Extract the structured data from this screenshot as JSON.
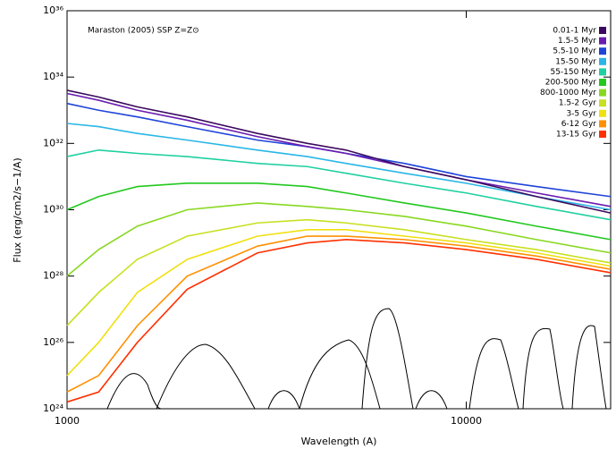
{
  "chart_data": {
    "type": "line",
    "title": "Maraston (2005) SSP Z=Z⊙",
    "x_label": "Wavelength (A)",
    "y_label": "Flux (erg/cm2/s−1/A)",
    "xlog": true,
    "ylog": true,
    "xlim": [
      1000,
      23000
    ],
    "ylim": [
      1e+24,
      1e+36
    ],
    "xticks": [
      1000,
      10000
    ],
    "yticks": [
      {
        "value": 1e+24,
        "label": "10²⁴"
      },
      {
        "value": 1e+26,
        "label": "10²⁶"
      },
      {
        "value": 1e+28,
        "label": "10²⁸"
      },
      {
        "value": 1e+30,
        "label": "10³⁰"
      },
      {
        "value": 1e+32,
        "label": "10³²"
      },
      {
        "value": 1e+34,
        "label": "10³⁴"
      },
      {
        "value": 1e+36,
        "label": "10³⁶"
      }
    ],
    "legend": "upper-right",
    "x": [
      1000,
      1200,
      1500,
      2000,
      3000,
      4000,
      5000,
      7000,
      10000,
      15000,
      23000
    ],
    "series": [
      {
        "name": "0.01-1 Myr",
        "color": "#3b0a5e",
        "values": [
          4e+33,
          2.5e+33,
          1.26e+33,
          6.3e+32,
          2e+32,
          1e+32,
          6.3e+31,
          2e+31,
          8e+30,
          2.5e+30,
          8e+29
        ]
      },
      {
        "name": "1.5-5 Myr",
        "color": "#6a1bb0",
        "values": [
          3.2e+33,
          2e+33,
          1e+33,
          5e+32,
          1.6e+32,
          8e+31,
          5e+31,
          2e+31,
          8e+30,
          3.2e+30,
          1.26e+30
        ]
      },
      {
        "name": "5.5-10 Myr",
        "color": "#1e44d8",
        "values": [
          1.6e+33,
          1e+33,
          6.3e+32,
          3.2e+32,
          1.26e+32,
          8e+31,
          5e+31,
          2.5e+31,
          1e+31,
          5e+30,
          2.5e+30
        ]
      },
      {
        "name": "15-50 Myr",
        "color": "#29b6e6",
        "values": [
          4e+32,
          3.2e+32,
          2e+32,
          1.26e+32,
          6.3e+31,
          4e+31,
          2.5e+31,
          1.26e+31,
          6.3e+30,
          2.5e+30,
          1e+30
        ]
      },
      {
        "name": "55-150 Myr",
        "color": "#1fd0a0",
        "values": [
          4e+31,
          6.3e+31,
          5e+31,
          4e+31,
          2.5e+31,
          2e+31,
          1.26e+31,
          6.3e+30,
          3.2e+30,
          1.26e+30,
          5e+29
        ]
      },
      {
        "name": "200-500 Myr",
        "color": "#22c81e",
        "values": [
          1e+30,
          2.5e+30,
          5e+30,
          6.3e+30,
          6.3e+30,
          5e+30,
          3.2e+30,
          1.6e+30,
          8e+29,
          3.2e+29,
          1.26e+29
        ]
      },
      {
        "name": "800-1000 Myr",
        "color": "#88d820",
        "values": [
          1e+28,
          6.3e+28,
          3.2e+29,
          1e+30,
          1.6e+30,
          1.26e+30,
          1e+30,
          6.3e+29,
          3.2e+29,
          1.26e+29,
          5e+28
        ]
      },
      {
        "name": "1.5-2 Gyr",
        "color": "#c8e020",
        "values": [
          3.2e+26,
          3.2e+27,
          3.2e+28,
          1.6e+29,
          4e+29,
          5e+29,
          4e+29,
          2.5e+29,
          1.26e+29,
          6.3e+28,
          2.5e+28
        ]
      },
      {
        "name": "3-5 Gyr",
        "color": "#f0e010",
        "values": [
          1e+25,
          1e+26,
          3.2e+27,
          3.2e+28,
          1.6e+29,
          2.5e+29,
          2.5e+29,
          1.6e+29,
          1e+29,
          5e+28,
          2e+28
        ]
      },
      {
        "name": "6-12 Gyr",
        "color": "#ff9000",
        "values": [
          3.2e+24,
          1e+25,
          3.2e+26,
          1e+28,
          8e+28,
          1.6e+29,
          1.6e+29,
          1.26e+29,
          8e+28,
          4e+28,
          1.6e+28
        ]
      },
      {
        "name": "13-15 Gyr",
        "color": "#ff3000",
        "values": [
          1.6e+24,
          3.2e+24,
          1e+26,
          4e+27,
          5e+28,
          1e+29,
          1.26e+29,
          1e+29,
          6.3e+28,
          3.2e+28,
          1.26e+28
        ]
      }
    ]
  }
}
